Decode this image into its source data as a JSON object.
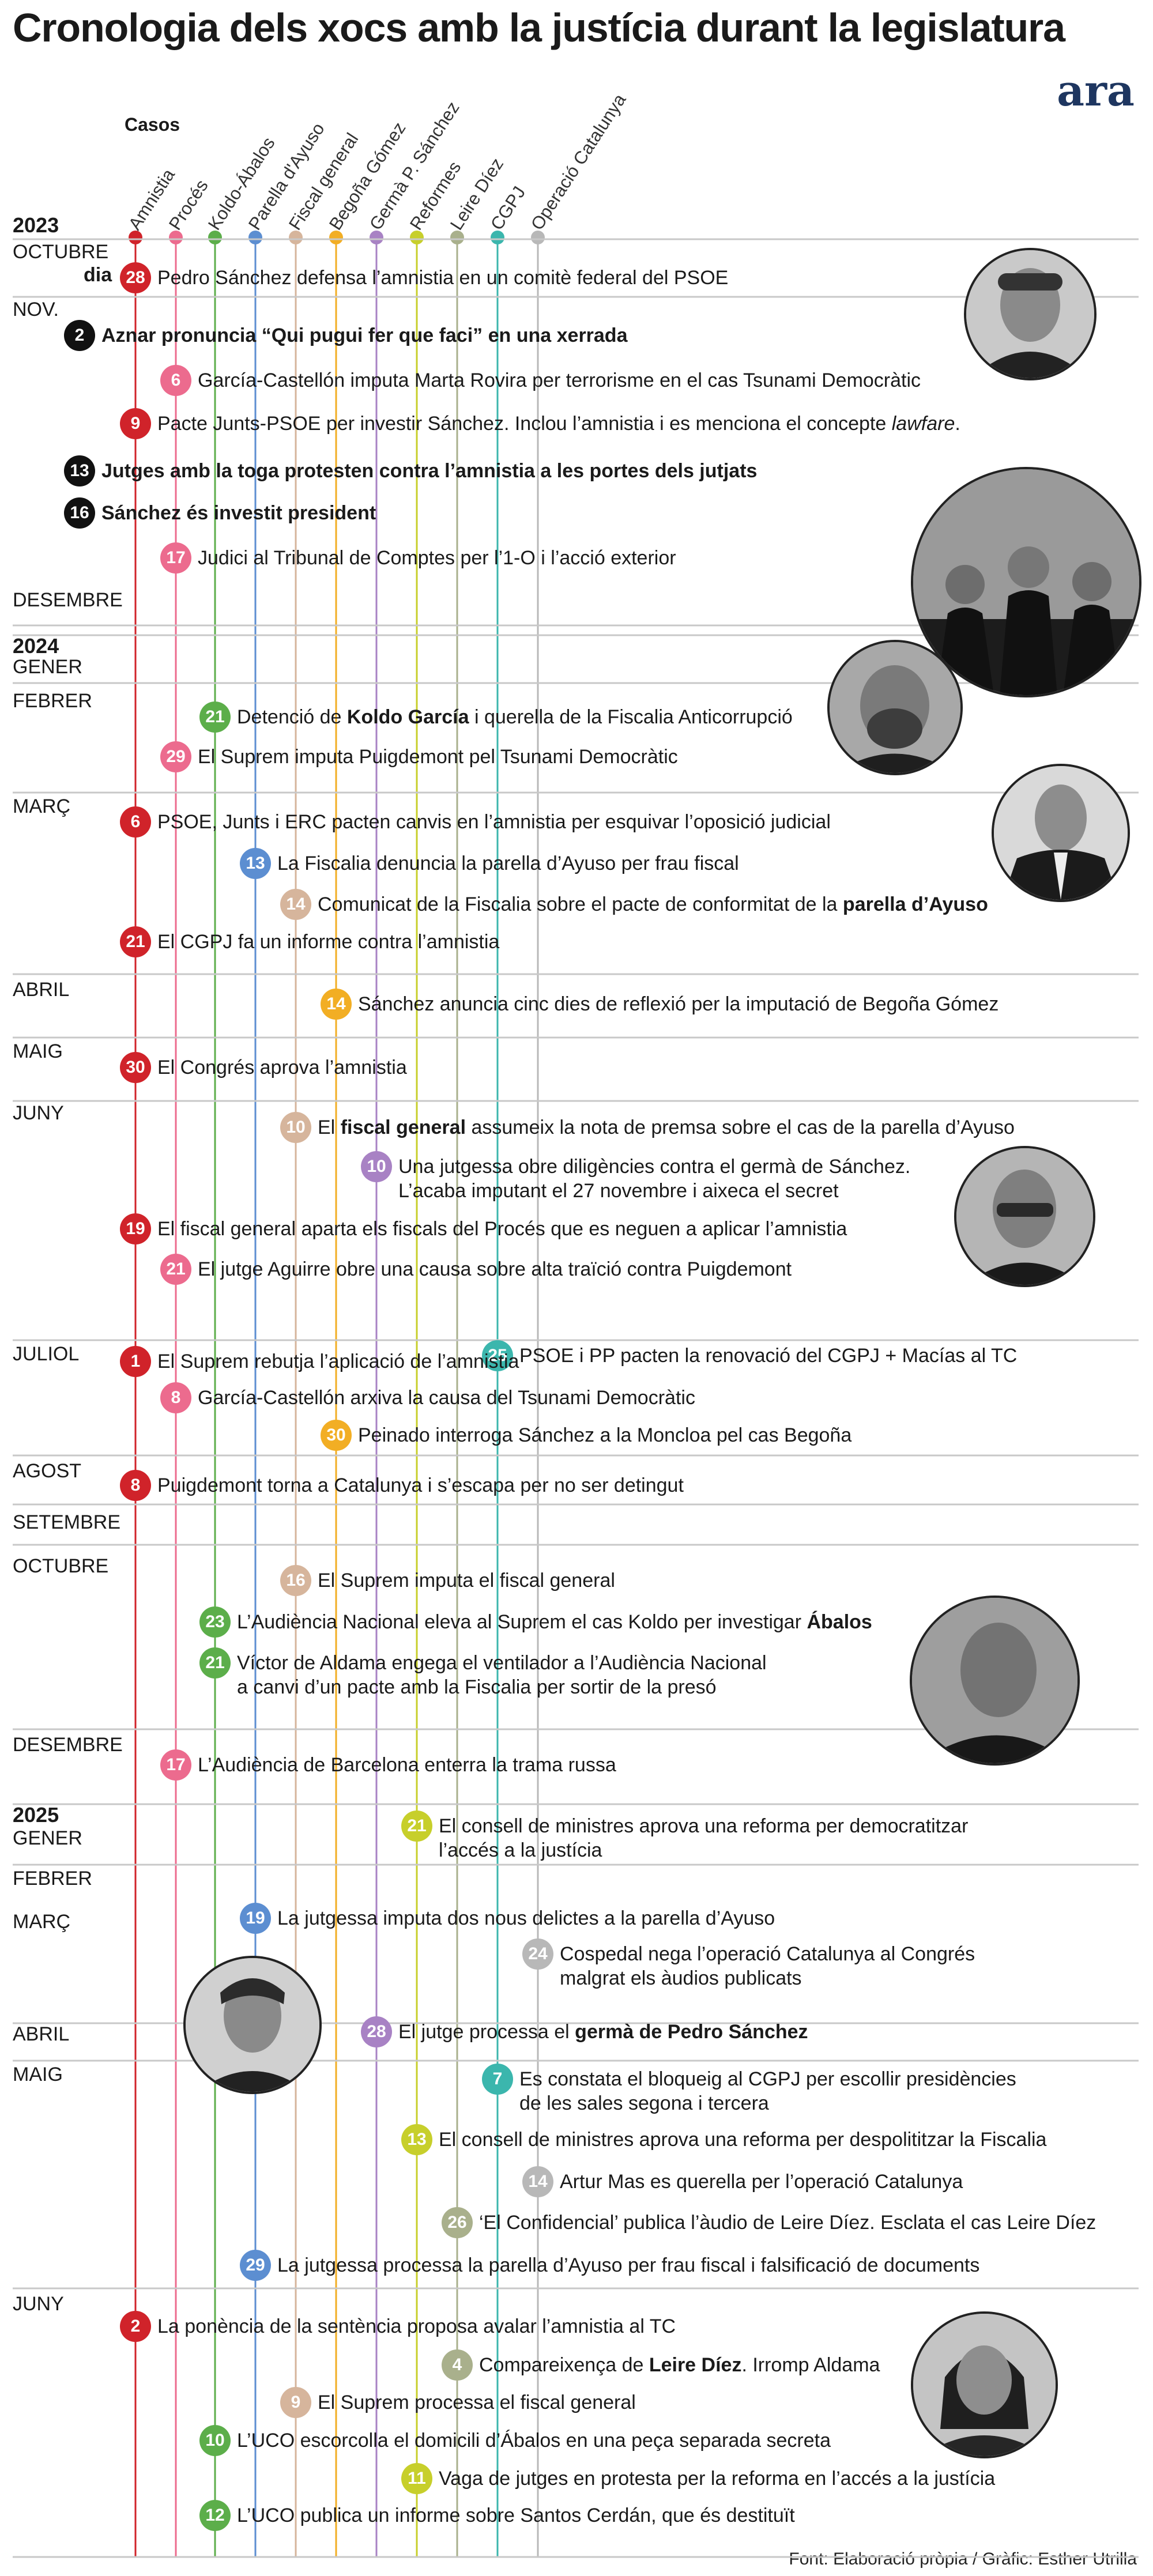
{
  "title": "Cronologia dels xocs amb la justícia durant la legislatura",
  "logo": "ara",
  "cases_heading": "Casos",
  "day_label": "dia",
  "source": "Font: Elaboració pròpia  / Gràfic: Esther Utrilla",
  "colors": {
    "dark": "#111111",
    "separator": "#c8c8c8"
  },
  "cases": [
    {
      "name": "Amnistia",
      "color": "#d0232a"
    },
    {
      "name": "Procés",
      "color": "#ec6b8e"
    },
    {
      "name": "Koldo-Ábalos",
      "color": "#5cae4a"
    },
    {
      "name": "Parella d'Ayuso",
      "color": "#5c8ed1"
    },
    {
      "name": "Fiscal general",
      "color": "#d6b59c"
    },
    {
      "name": "Begoña Gómez",
      "color": "#f2ae24"
    },
    {
      "name": "Germà P. Sánchez",
      "color": "#a882c4"
    },
    {
      "name": "Reformes",
      "color": "#c7cf2b"
    },
    {
      "name": "Leire Díez",
      "color": "#a9b08c"
    },
    {
      "name": "CGPJ",
      "color": "#3bb6ad"
    },
    {
      "name": "Operació Catalunya",
      "color": "#b8b8b8"
    }
  ],
  "years": [
    {
      "label": "2023"
    },
    {
      "label": "2024"
    },
    {
      "label": "2025"
    }
  ],
  "months": [
    {
      "label": "OCTUBRE"
    },
    {
      "label": "NOV."
    },
    {
      "label": "DESEMBRE"
    },
    {
      "label": "GENER"
    },
    {
      "label": "FEBRER"
    },
    {
      "label": "MARÇ"
    },
    {
      "label": "ABRIL"
    },
    {
      "label": "MAIG"
    },
    {
      "label": "JUNY"
    },
    {
      "label": "JULIOL"
    },
    {
      "label": "AGOST"
    },
    {
      "label": "SETEMBRE"
    },
    {
      "label": "OCTUBRE"
    },
    {
      "label": "DESEMBRE"
    },
    {
      "label": "GENER"
    },
    {
      "label": "FEBRER"
    },
    {
      "label": "MARÇ"
    },
    {
      "label": "ABRIL"
    },
    {
      "label": "MAIG"
    },
    {
      "label": "JUNY"
    }
  ],
  "events": [
    {
      "day": "28",
      "case": 0,
      "parts": [
        {
          "t": "Pedro Sánchez defensa l’amnistia en un comitè federal del PSOE"
        }
      ]
    },
    {
      "day": "2",
      "case": -1,
      "parts": [
        {
          "t": "Aznar pronuncia “Qui pugui fer que faci” en una xerrada",
          "b": true
        }
      ]
    },
    {
      "day": "6",
      "case": 1,
      "parts": [
        {
          "t": "García-Castellón imputa Marta Rovira per terrorisme en el cas Tsunami Democràtic"
        }
      ]
    },
    {
      "day": "9",
      "case": 0,
      "parts": [
        {
          "t": "Pacte Junts-PSOE per investir Sánchez. Inclou l’amnistia i es menciona el concepte "
        },
        {
          "t": "lawfare",
          "i": true
        },
        {
          "t": "."
        }
      ]
    },
    {
      "day": "13",
      "case": -1,
      "parts": [
        {
          "t": "Jutges amb la toga protesten contra l’amnistia a les portes dels jutjats",
          "b": true
        }
      ]
    },
    {
      "day": "16",
      "case": -1,
      "parts": [
        {
          "t": "Sánchez és investit president",
          "b": true
        }
      ]
    },
    {
      "day": "17",
      "case": 1,
      "parts": [
        {
          "t": "Judici al Tribunal de Comptes per l’1-O i l’acció exterior"
        }
      ]
    },
    {
      "day": "21",
      "case": 2,
      "parts": [
        {
          "t": "Detenció de "
        },
        {
          "t": "Koldo García",
          "b": true
        },
        {
          "t": " i querella de la Fiscalia Anticorrupció"
        }
      ]
    },
    {
      "day": "29",
      "case": 1,
      "parts": [
        {
          "t": "El Suprem imputa Puigdemont pel Tsunami Democràtic"
        }
      ]
    },
    {
      "day": "6",
      "case": 0,
      "parts": [
        {
          "t": "PSOE, Junts i ERC pacten canvis en l’amnistia per esquivar l’oposició judicial"
        }
      ]
    },
    {
      "day": "13",
      "case": 3,
      "parts": [
        {
          "t": "La Fiscalia denuncia la parella d’Ayuso per frau fiscal"
        }
      ]
    },
    {
      "day": "14",
      "case": 4,
      "parts": [
        {
          "t": "Comunicat de la Fiscalia sobre el pacte de conformitat de la "
        },
        {
          "t": "parella d’Ayuso",
          "b": true
        }
      ]
    },
    {
      "day": "21",
      "case": 0,
      "parts": [
        {
          "t": "El CGPJ fa un informe contra l’amnistia"
        }
      ]
    },
    {
      "day": "14",
      "case": 5,
      "parts": [
        {
          "t": "Sánchez anuncia cinc dies de reflexió per la imputació de Begoña Gómez"
        }
      ]
    },
    {
      "day": "30",
      "case": 0,
      "parts": [
        {
          "t": "El Congrés aprova l’amnistia"
        }
      ]
    },
    {
      "day": "10",
      "case": 4,
      "parts": [
        {
          "t": "El "
        },
        {
          "t": "fiscal general",
          "b": true
        },
        {
          "t": " assumeix la nota de premsa sobre el cas de la parella d’Ayuso"
        }
      ]
    },
    {
      "day": "10",
      "case": 6,
      "parts": [
        {
          "t": "Una jutgessa obre diligències contra el germà de Sánchez."
        }
      ],
      "line2": "L’acaba imputant el 27 novembre i aixeca el secret"
    },
    {
      "day": "19",
      "case": 0,
      "parts": [
        {
          "t": "El fiscal general aparta els fiscals del Procés que es neguen a aplicar l’amnistia"
        }
      ]
    },
    {
      "day": "21",
      "case": 1,
      "parts": [
        {
          "t": "El jutge Aguirre obre una causa sobre alta traïció contra Puigdemont"
        }
      ]
    },
    {
      "day": "25",
      "case": 9,
      "parts": [
        {
          "t": "PSOE i PP pacten la renovació del CGPJ + Macías al TC"
        }
      ]
    },
    {
      "day": "1",
      "case": 0,
      "parts": [
        {
          "t": "El Suprem rebutja l’aplicació de l’amnistia"
        }
      ]
    },
    {
      "day": "8",
      "case": 1,
      "parts": [
        {
          "t": "García-Castellón arxiva la causa del Tsunami Democràtic"
        }
      ]
    },
    {
      "day": "30",
      "case": 5,
      "parts": [
        {
          "t": "Peinado interroga Sánchez a la Moncloa pel cas Begoña"
        }
      ]
    },
    {
      "day": "8",
      "case": 0,
      "parts": [
        {
          "t": "Puigdemont torna a Catalunya i s’escapa per no ser detingut"
        }
      ]
    },
    {
      "day": "16",
      "case": 4,
      "parts": [
        {
          "t": "El Suprem imputa el fiscal general"
        }
      ]
    },
    {
      "day": "23",
      "case": 2,
      "parts": [
        {
          "t": "L’Audiència Nacional eleva al Suprem el cas Koldo per investigar "
        },
        {
          "t": "Ábalos",
          "b": true
        }
      ]
    },
    {
      "day": "21",
      "case": 2,
      "parts": [
        {
          "t": "Víctor de Aldama engega el ventilador a l’Audiència Nacional"
        }
      ],
      "line2": "a canvi d’un pacte amb la Fiscalia per sortir de la presó"
    },
    {
      "day": "17",
      "case": 1,
      "parts": [
        {
          "t": "L’Audiència de Barcelona enterra la trama russa"
        }
      ]
    },
    {
      "day": "21",
      "case": 7,
      "parts": [
        {
          "t": "El consell de ministres aprova una reforma per democratitzar"
        }
      ],
      "line2": "l’accés a la justícia"
    },
    {
      "day": "19",
      "case": 3,
      "parts": [
        {
          "t": "La jutgessa imputa dos nous delictes a la parella d’Ayuso"
        }
      ]
    },
    {
      "day": "24",
      "case": 10,
      "parts": [
        {
          "t": "Cospedal nega l’operació Catalunya al Congrés"
        }
      ],
      "line2": "malgrat els àudios publicats"
    },
    {
      "day": "28",
      "case": 6,
      "parts": [
        {
          "t": "El jutge processa el "
        },
        {
          "t": "germà de Pedro Sánchez",
          "b": true
        }
      ]
    },
    {
      "day": "7",
      "case": 9,
      "parts": [
        {
          "t": "Es constata el bloqueig al CGPJ per escollir presidències"
        }
      ],
      "line2": "de les sales segona i tercera"
    },
    {
      "day": "13",
      "case": 7,
      "parts": [
        {
          "t": "El consell de ministres aprova una reforma per despolititzar la Fiscalia"
        }
      ]
    },
    {
      "day": "14",
      "case": 10,
      "parts": [
        {
          "t": "Artur Mas es querella per l’operació Catalunya"
        }
      ]
    },
    {
      "day": "26",
      "case": 8,
      "parts": [
        {
          "t": "‘El Confidencial’ publica l’àudio de Leire Díez. Esclata el cas Leire Díez"
        }
      ]
    },
    {
      "day": "29",
      "case": 3,
      "parts": [
        {
          "t": "La jutgessa processa la parella d’Ayuso per frau fiscal i falsificació de documents"
        }
      ]
    },
    {
      "day": "2",
      "case": 0,
      "parts": [
        {
          "t": " La ponència de la sentència proposa avalar l’amnistia al TC"
        }
      ]
    },
    {
      "day": "4",
      "case": 8,
      "parts": [
        {
          "t": "Compareixença de "
        },
        {
          "t": "Leire Díez",
          "b": true
        },
        {
          "t": ". Irromp Aldama"
        }
      ]
    },
    {
      "day": "9",
      "case": 4,
      "parts": [
        {
          "t": "El Suprem processa el fiscal general"
        }
      ]
    },
    {
      "day": "10",
      "case": 2,
      "parts": [
        {
          "t": "L’UCO escorcolla el domicili d’Ábalos en una peça separada secreta"
        }
      ]
    },
    {
      "day": "11",
      "case": 7,
      "parts": [
        {
          "t": "Vaga de jutges en protesta per la reforma en l’accés a la justícia"
        }
      ]
    },
    {
      "day": "12",
      "case": 2,
      "parts": [
        {
          "t": "L’UCO publica un informe sobre Santos Cerdán, que és destituït"
        }
      ]
    }
  ]
}
